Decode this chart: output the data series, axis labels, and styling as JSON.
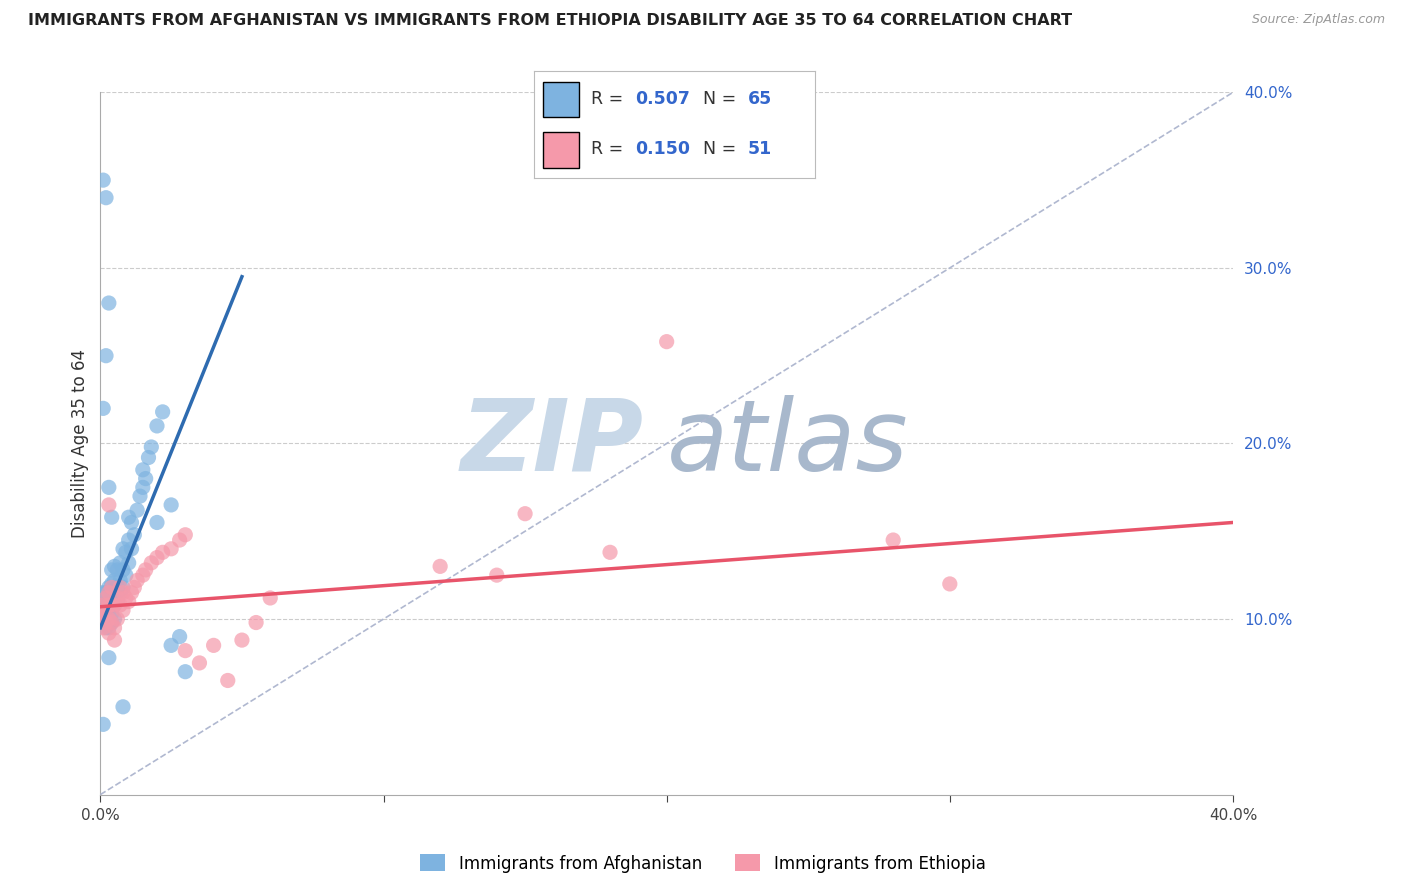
{
  "title": "IMMIGRANTS FROM AFGHANISTAN VS IMMIGRANTS FROM ETHIOPIA DISABILITY AGE 35 TO 64 CORRELATION CHART",
  "source_text": "Source: ZipAtlas.com",
  "ylabel": "Disability Age 35 to 64",
  "xlim": [
    0,
    0.4
  ],
  "ylim": [
    0,
    0.4
  ],
  "afghanistan_R": 0.507,
  "afghanistan_N": 65,
  "ethiopia_R": 0.15,
  "ethiopia_N": 51,
  "afghanistan_color": "#7EB3E0",
  "ethiopia_color": "#F599AA",
  "afghanistan_line_color": "#2E6BB0",
  "ethiopia_line_color": "#E8546A",
  "ref_line_color": "#B0B8D0",
  "watermark_zip_color": "#C8D8E8",
  "watermark_atlas_color": "#A8B8CC",
  "background_color": "#FFFFFF",
  "af_line_x0": 0.0,
  "af_line_y0": 0.095,
  "af_line_x1": 0.05,
  "af_line_y1": 0.295,
  "et_line_x0": 0.0,
  "et_line_y0": 0.107,
  "et_line_x1": 0.4,
  "et_line_y1": 0.155,
  "afghanistan_scatter_x": [
    0.0005,
    0.001,
    0.001,
    0.001,
    0.002,
    0.002,
    0.002,
    0.002,
    0.003,
    0.003,
    0.003,
    0.003,
    0.003,
    0.004,
    0.004,
    0.004,
    0.004,
    0.004,
    0.004,
    0.005,
    0.005,
    0.005,
    0.005,
    0.005,
    0.006,
    0.006,
    0.006,
    0.007,
    0.007,
    0.007,
    0.008,
    0.008,
    0.008,
    0.009,
    0.009,
    0.01,
    0.01,
    0.01,
    0.011,
    0.011,
    0.012,
    0.013,
    0.014,
    0.015,
    0.015,
    0.016,
    0.017,
    0.018,
    0.02,
    0.022,
    0.025,
    0.028,
    0.03,
    0.001,
    0.002,
    0.003,
    0.004,
    0.002,
    0.001,
    0.003,
    0.02,
    0.025,
    0.003,
    0.008,
    0.001
  ],
  "afghanistan_scatter_y": [
    0.105,
    0.1,
    0.108,
    0.115,
    0.095,
    0.1,
    0.108,
    0.115,
    0.095,
    0.1,
    0.105,
    0.11,
    0.118,
    0.098,
    0.103,
    0.108,
    0.115,
    0.12,
    0.128,
    0.1,
    0.108,
    0.115,
    0.122,
    0.13,
    0.11,
    0.118,
    0.128,
    0.115,
    0.122,
    0.132,
    0.118,
    0.128,
    0.14,
    0.125,
    0.138,
    0.132,
    0.145,
    0.158,
    0.14,
    0.155,
    0.148,
    0.162,
    0.17,
    0.175,
    0.185,
    0.18,
    0.192,
    0.198,
    0.21,
    0.218,
    0.085,
    0.09,
    0.07,
    0.22,
    0.25,
    0.175,
    0.158,
    0.34,
    0.35,
    0.28,
    0.155,
    0.165,
    0.078,
    0.05,
    0.04
  ],
  "ethiopia_scatter_x": [
    0.0005,
    0.001,
    0.001,
    0.001,
    0.002,
    0.002,
    0.002,
    0.003,
    0.003,
    0.003,
    0.003,
    0.004,
    0.004,
    0.004,
    0.005,
    0.005,
    0.006,
    0.006,
    0.007,
    0.007,
    0.008,
    0.008,
    0.009,
    0.01,
    0.011,
    0.012,
    0.013,
    0.015,
    0.016,
    0.018,
    0.02,
    0.022,
    0.025,
    0.028,
    0.03,
    0.03,
    0.035,
    0.04,
    0.045,
    0.05,
    0.055,
    0.06,
    0.12,
    0.14,
    0.15,
    0.18,
    0.2,
    0.28,
    0.3,
    0.003,
    0.005
  ],
  "ethiopia_scatter_y": [
    0.1,
    0.095,
    0.102,
    0.108,
    0.098,
    0.105,
    0.112,
    0.092,
    0.1,
    0.108,
    0.115,
    0.098,
    0.108,
    0.118,
    0.095,
    0.108,
    0.1,
    0.112,
    0.108,
    0.118,
    0.105,
    0.115,
    0.112,
    0.11,
    0.115,
    0.118,
    0.122,
    0.125,
    0.128,
    0.132,
    0.135,
    0.138,
    0.14,
    0.145,
    0.148,
    0.082,
    0.075,
    0.085,
    0.065,
    0.088,
    0.098,
    0.112,
    0.13,
    0.125,
    0.16,
    0.138,
    0.258,
    0.145,
    0.12,
    0.165,
    0.088
  ]
}
